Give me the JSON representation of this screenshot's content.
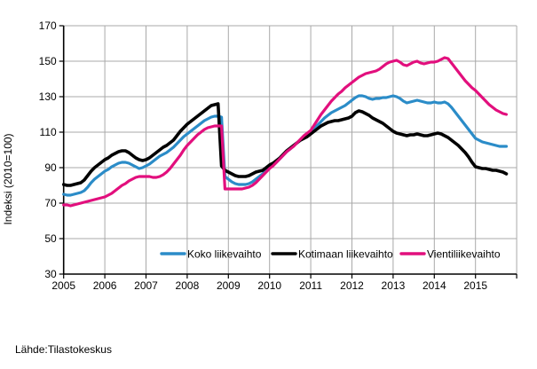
{
  "chart_data": {
    "type": "line",
    "title": "",
    "xlabel": "",
    "ylabel": "Indeksi (2010=100)",
    "ylim": [
      30,
      170
    ],
    "yticks": [
      30,
      50,
      70,
      90,
      110,
      130,
      150,
      170
    ],
    "xtick_labels": [
      "2005",
      "2006",
      "2007",
      "2008",
      "2009",
      "2010",
      "2011",
      "2012",
      "2013",
      "2014",
      "2015"
    ],
    "frequency": "monthly",
    "x_start": "2005-01",
    "x_end": "2015-10",
    "grid": true,
    "legend_position": "bottom-inside",
    "series": [
      {
        "name": "Koko liikevaihto",
        "color": "#2b8cc8",
        "values": [
          75,
          74.5,
          74.5,
          75,
          75.5,
          76,
          77,
          79,
          81.5,
          83.5,
          85,
          86.5,
          88,
          89,
          90.5,
          91.5,
          92.5,
          93,
          93,
          92.5,
          91.5,
          90.5,
          89.5,
          90,
          91,
          92,
          93.5,
          95,
          96.5,
          97.5,
          98.5,
          100,
          101.5,
          103.5,
          105.5,
          107.5,
          109,
          110.5,
          112,
          113.5,
          115,
          116.5,
          117.5,
          118.5,
          119,
          119,
          118.5,
          85,
          83.5,
          82,
          81,
          80.5,
          80.5,
          80.5,
          81,
          82,
          83.5,
          85,
          86.5,
          88.5,
          90,
          91.5,
          93,
          95,
          97,
          99,
          100.5,
          102.5,
          104,
          105.5,
          107,
          108.5,
          110,
          112,
          114,
          116,
          118,
          119.5,
          121,
          122,
          123,
          124,
          125,
          126.5,
          128,
          129.5,
          130.5,
          130.5,
          130,
          129,
          128.5,
          129,
          129,
          129.5,
          129.5,
          130,
          130.5,
          130,
          129,
          127.5,
          126.5,
          127,
          127.5,
          128,
          127.5,
          127,
          126.5,
          126.5,
          127,
          126.5,
          126.5,
          127,
          126,
          124,
          121.5,
          119,
          116.5,
          114,
          111.5,
          109,
          106.5,
          105.5,
          104.5,
          104,
          103.5,
          103,
          102.5,
          102,
          102,
          102
        ]
      },
      {
        "name": "Kotimaan liikevaihto",
        "color": "#000000",
        "values": [
          80.5,
          80,
          80,
          80.5,
          81,
          81.5,
          83,
          85.5,
          88,
          90,
          91.5,
          93,
          94.5,
          95.5,
          97,
          98,
          99,
          99.5,
          99.5,
          98.5,
          97,
          95.5,
          94.5,
          94,
          94.5,
          95.5,
          97,
          98.5,
          100,
          101.5,
          102.5,
          104,
          105.5,
          108,
          110.5,
          112.5,
          114.5,
          116,
          117.5,
          119,
          120.5,
          122,
          123.5,
          125,
          125.5,
          126,
          91,
          88.5,
          87.5,
          86.5,
          85.5,
          85,
          85,
          85,
          85.5,
          86.5,
          87.5,
          88,
          88.5,
          90,
          91.5,
          92.5,
          94,
          95.5,
          97.5,
          99.5,
          101,
          102.5,
          104,
          105.5,
          106.5,
          107.5,
          109,
          110.5,
          112,
          113.5,
          114.5,
          115.5,
          116,
          116.5,
          116.5,
          117,
          117.5,
          118,
          119,
          121,
          122,
          121.5,
          120.5,
          119.5,
          118,
          117,
          116,
          115,
          113.5,
          112,
          110.5,
          109.5,
          109,
          108.5,
          108,
          108.5,
          108.5,
          109,
          108.5,
          108,
          108,
          108.5,
          109,
          109.5,
          109,
          108,
          107,
          105.5,
          104,
          102.5,
          100.5,
          98.5,
          96,
          93,
          90.5,
          90,
          89.5,
          89.5,
          89,
          88.5,
          88.5,
          88,
          87.5,
          86.5
        ]
      },
      {
        "name": "Vientiliikevaihto",
        "color": "#e20f7d",
        "values": [
          69,
          69,
          68.5,
          69,
          69.5,
          70,
          70.5,
          71,
          71.5,
          72,
          72.5,
          73,
          73.5,
          74.5,
          75.5,
          77,
          78.5,
          80,
          81,
          82.5,
          83.5,
          84.5,
          85,
          85,
          85,
          85,
          84.5,
          84.5,
          85,
          86,
          87.5,
          89.5,
          92,
          94.5,
          97,
          100,
          102.5,
          104.5,
          106.5,
          108.5,
          110,
          111.5,
          112.5,
          113,
          113.5,
          113.5,
          113.5,
          78,
          78,
          78,
          78,
          78,
          78,
          78.5,
          79,
          80,
          81.5,
          83.5,
          85.5,
          87.5,
          89.5,
          91,
          93,
          95,
          97,
          99,
          100.5,
          102,
          104,
          106,
          108,
          109.5,
          111,
          114,
          117,
          120,
          122.5,
          125,
          127.5,
          129.5,
          131.5,
          133,
          135,
          136.5,
          138,
          139.5,
          141,
          142,
          143,
          143.5,
          144,
          144.5,
          145.5,
          147,
          148.5,
          149.5,
          150,
          150.5,
          149.5,
          148,
          147.5,
          148.5,
          149.5,
          150,
          149,
          148.5,
          149,
          149.5,
          149.5,
          150,
          151,
          152,
          151.5,
          149,
          146.5,
          144,
          141.5,
          139,
          137,
          135,
          133.5,
          131.5,
          129.5,
          127.5,
          125.5,
          124,
          122.5,
          121.5,
          120.5,
          120
        ]
      }
    ]
  },
  "footer": {
    "source": "Lähde:Tilastokeskus"
  }
}
